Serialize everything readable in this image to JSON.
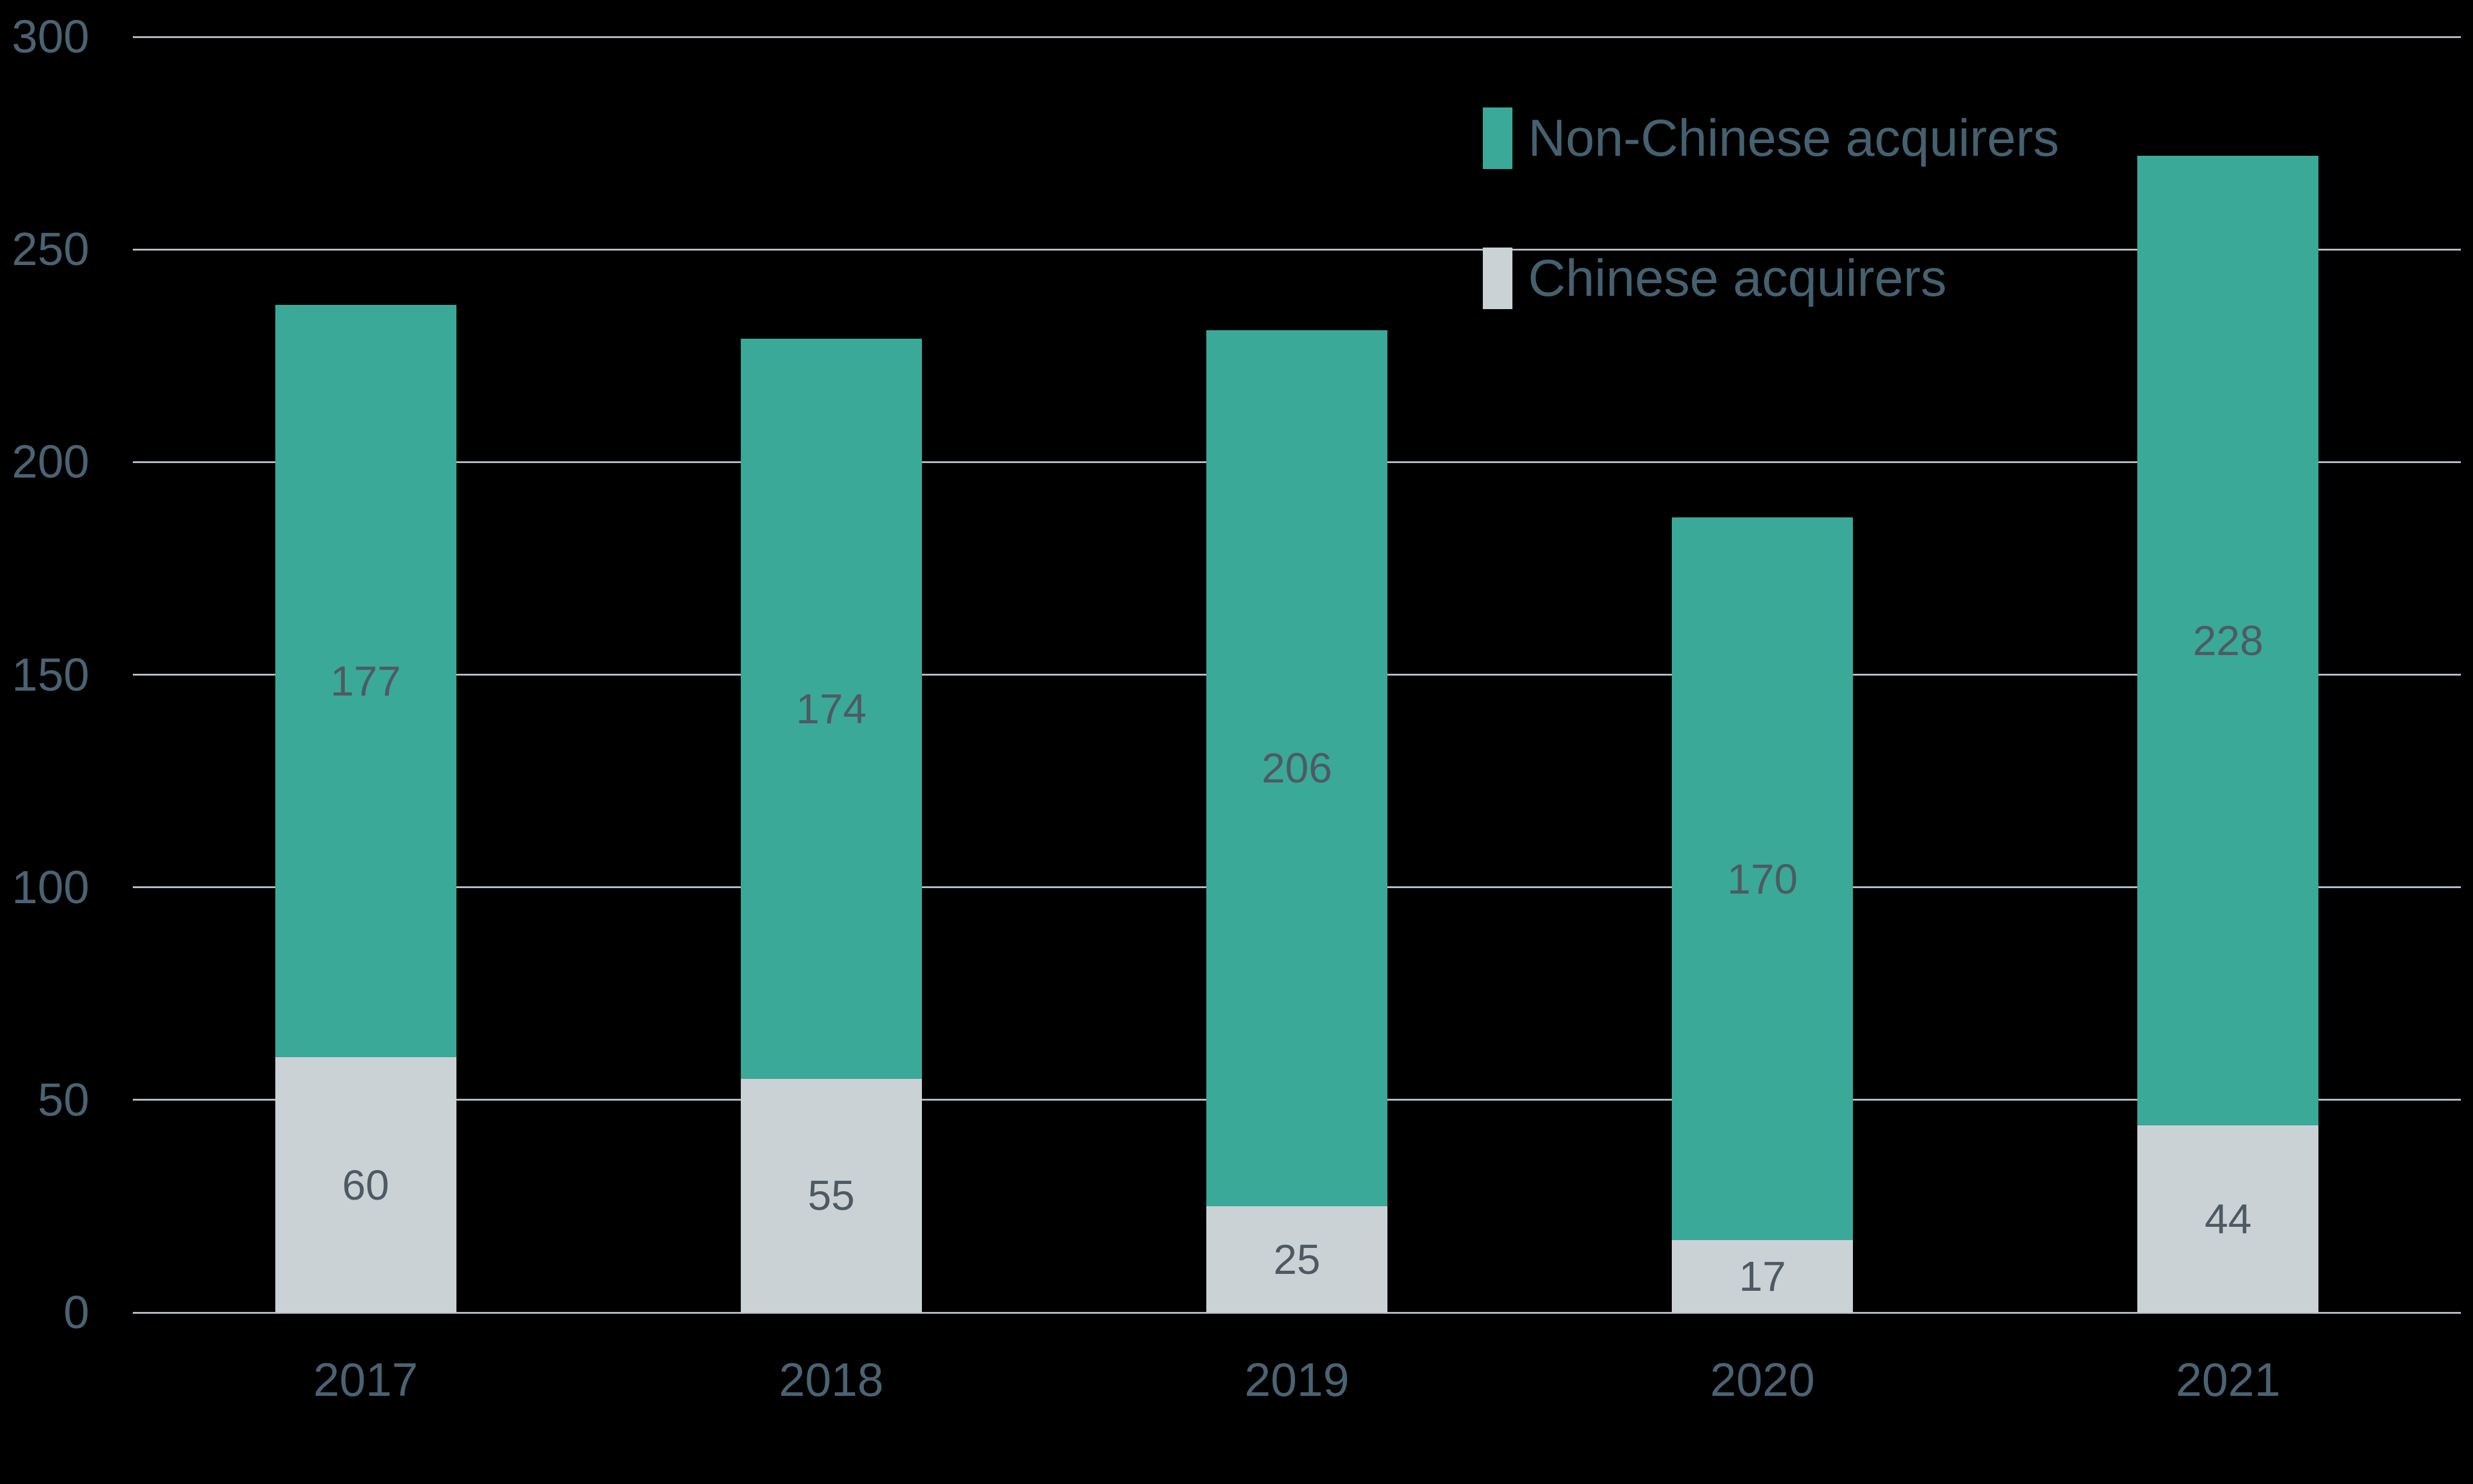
{
  "chart_data": {
    "type": "bar",
    "stacked": true,
    "title": "",
    "xlabel": "",
    "ylabel": "",
    "categories": [
      "2017",
      "2018",
      "2019",
      "2020",
      "2021"
    ],
    "series": [
      {
        "name": "Chinese acquirers",
        "color": "#cbd2d6",
        "values": [
          60,
          55,
          25,
          17,
          44
        ]
      },
      {
        "name": "Non-Chinese acquirers",
        "color": "#3aa998",
        "values": [
          177,
          174,
          206,
          170,
          228
        ]
      }
    ],
    "stack_order_bottom_to_top": [
      "Chinese acquirers",
      "Non-Chinese acquirers"
    ],
    "totals": [
      237,
      229,
      231,
      187,
      272
    ],
    "ylim": [
      0,
      300
    ],
    "yticks": [
      0,
      50,
      100,
      150,
      200,
      250,
      300
    ],
    "grid": true,
    "data_labels": true,
    "legend_position": "top-right"
  },
  "legend": {
    "items": [
      {
        "label": "Non-Chinese acquirers",
        "color": "#3aa998"
      },
      {
        "label": "Chinese acquirers",
        "color": "#cbd2d6"
      }
    ]
  },
  "colors": {
    "background": "#000000",
    "gridline": "#b6bec5",
    "axis_text": "#4a6373",
    "data_label_text": "#4e5a63",
    "legend_text": "#456170"
  }
}
